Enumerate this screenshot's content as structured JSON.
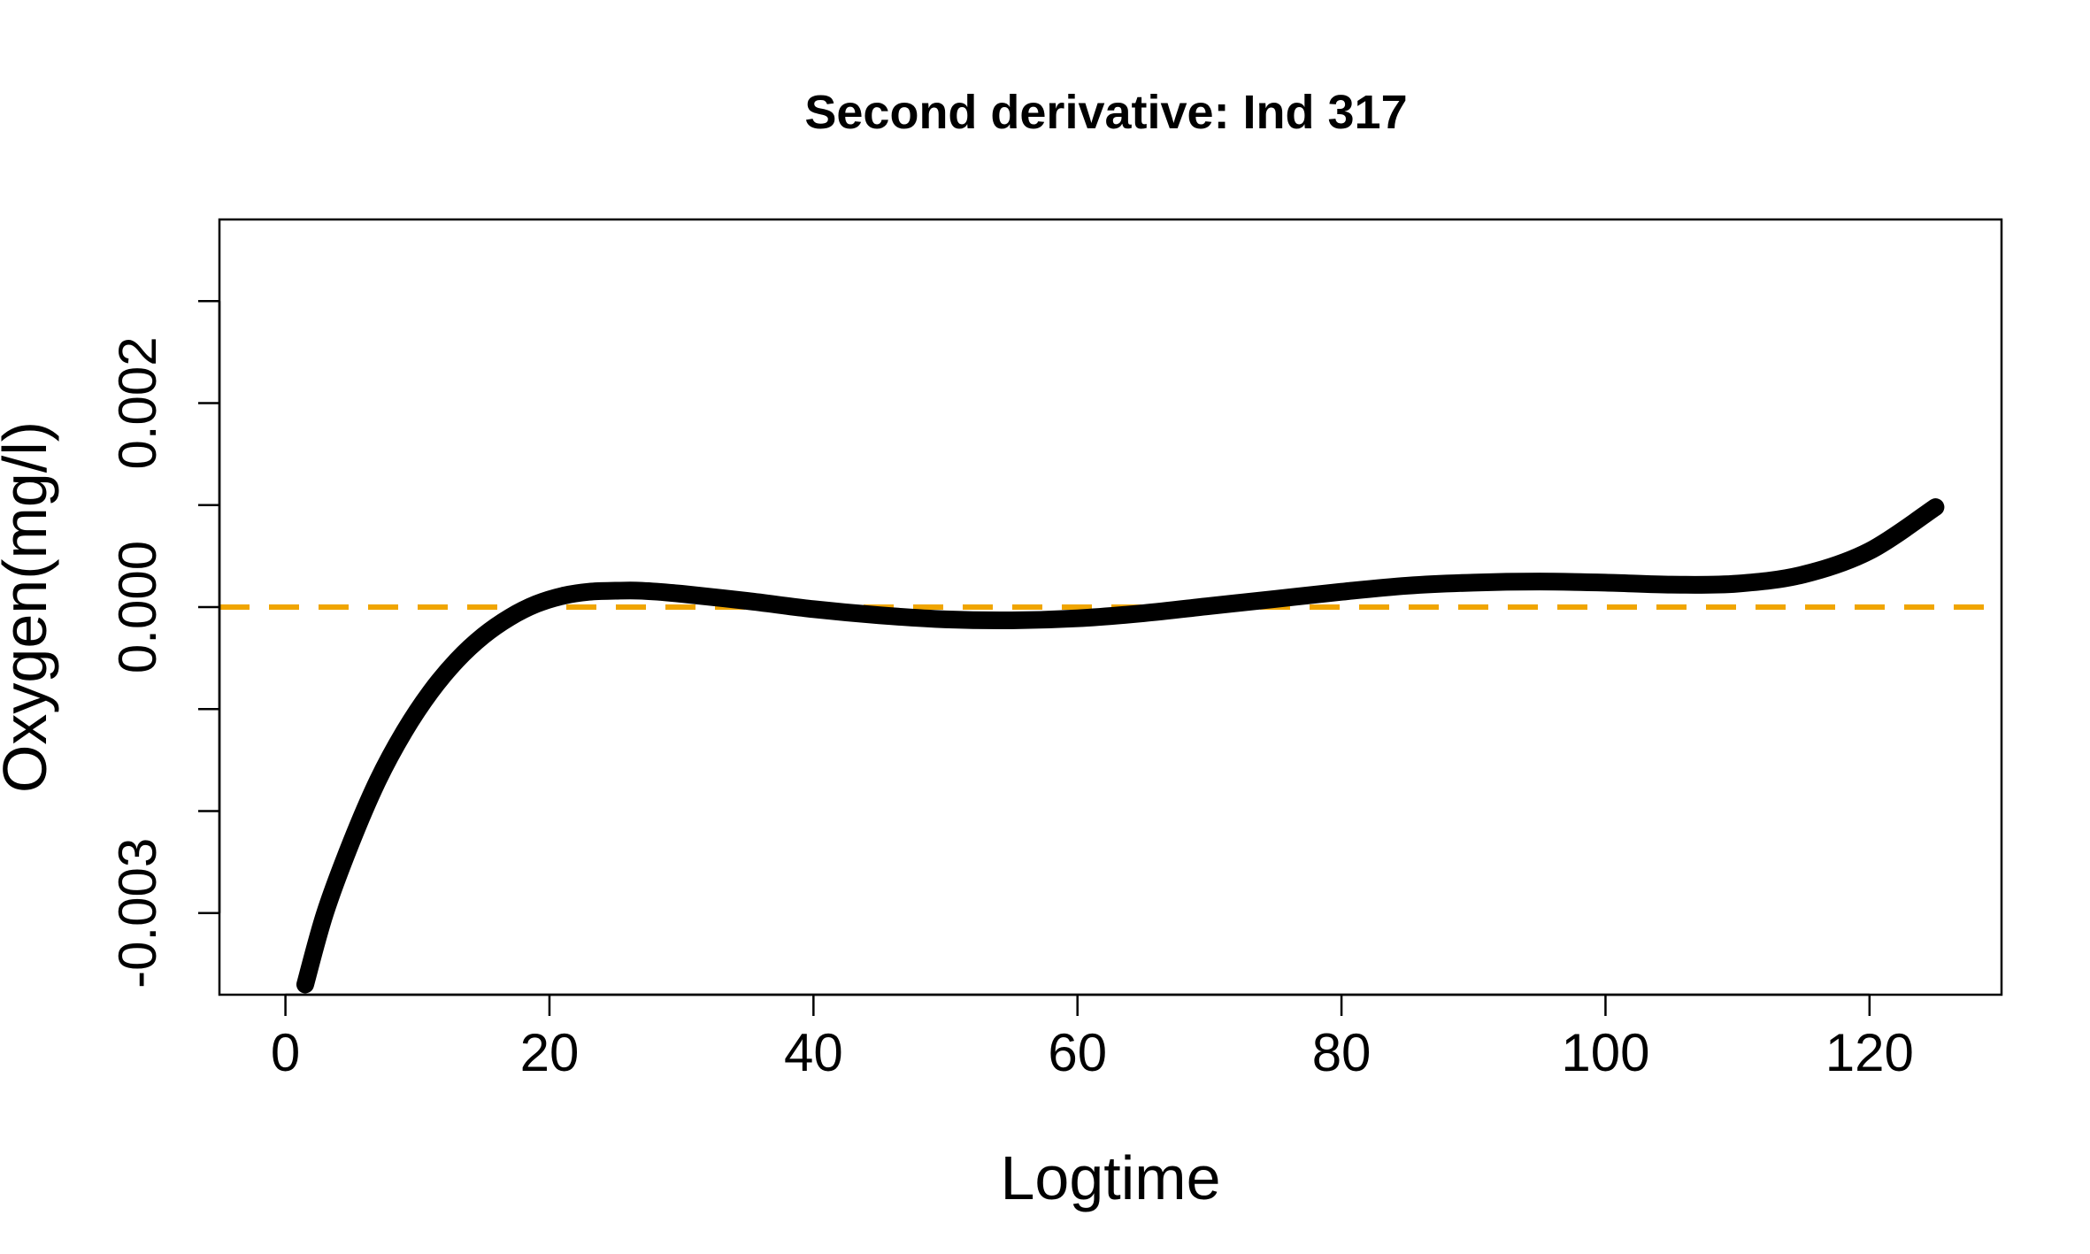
{
  "chart_data": {
    "type": "line",
    "title": "Second derivative: Ind 317",
    "xlabel": "Logtime",
    "ylabel": "Oxygen(mg/l)",
    "xlim": [
      -5,
      130
    ],
    "ylim": [
      -0.0038,
      0.0038
    ],
    "x_ticks": [
      0,
      20,
      40,
      60,
      80,
      100,
      120
    ],
    "x_tick_labels": [
      "0",
      "20",
      "40",
      "60",
      "80",
      "100",
      "120"
    ],
    "y_ticks": [
      -0.003,
      -0.002,
      -0.001,
      0.0,
      0.001,
      0.002,
      0.003
    ],
    "y_tick_labels": [
      "-0.003",
      "",
      "",
      "0.000",
      "",
      "0.002",
      ""
    ],
    "grid": false,
    "series": [
      {
        "color": "#000000",
        "x": [
          1.5,
          3,
          5,
          7,
          9,
          11,
          13,
          15,
          17,
          19,
          21,
          23,
          25,
          27,
          30,
          35,
          40,
          45,
          50,
          55,
          60,
          65,
          70,
          75,
          80,
          85,
          90,
          95,
          100,
          105,
          110,
          115,
          120,
          125
        ],
        "y": [
          -0.0037,
          -0.003,
          -0.0023,
          -0.0017,
          -0.00122,
          -0.00083,
          -0.00052,
          -0.00028,
          -0.0001,
          3e-05,
          0.00011,
          0.00015,
          0.00016,
          0.00016,
          0.00013,
          6e-05,
          -2e-05,
          -8e-05,
          -0.00012,
          -0.00013,
          -0.00011,
          -6e-05,
          1e-05,
          8e-05,
          0.00015,
          0.00021,
          0.00024,
          0.00025,
          0.00024,
          0.00022,
          0.00023,
          0.00032,
          0.00055,
          0.00098
        ]
      }
    ],
    "reference_lines": [
      {
        "type": "horizontal",
        "y": 0.0,
        "color": "#F0A500",
        "style": "dashed"
      }
    ]
  }
}
